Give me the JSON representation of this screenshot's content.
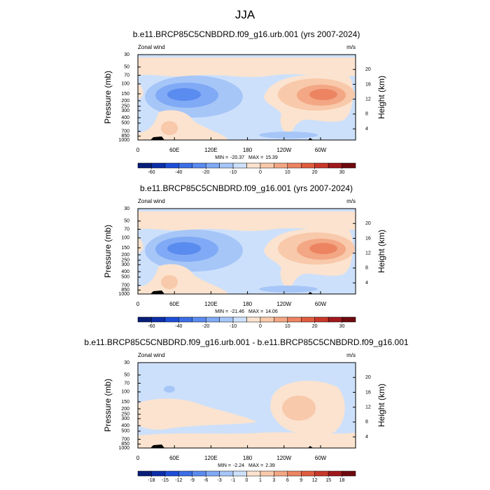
{
  "title": "JJA",
  "chart_data": [
    {
      "type": "contour",
      "title": "b.e11.BRCP85C5CNBDRD.f09_g16.urb.001 (yrs 2007-2024)",
      "left_label": "Zonal wind",
      "right_label": "m/s",
      "ylabel": "Pressure (mb)",
      "y2label": "Height (km)",
      "xlim": [
        0,
        357.5
      ],
      "xticks": [
        0,
        {
          "value": 60,
          "label": "60E"
        },
        {
          "value": 120,
          "label": "120E"
        },
        180,
        {
          "value": 240,
          "label": "120W"
        },
        {
          "value": 300,
          "label": "60W"
        }
      ],
      "ylim": [
        1000,
        30
      ],
      "ylog": true,
      "yticks": [
        1000,
        850,
        700,
        500,
        400,
        300,
        250,
        200,
        150,
        100,
        70,
        50,
        30
      ],
      "y2lim": [
        1,
        24
      ],
      "y2ticks": [
        4,
        8,
        12,
        16,
        20
      ],
      "min_label": "MIN =",
      "min": -20.37,
      "max_label": "MAX =",
      "max": 15.39,
      "colorbar": {
        "colors": [
          "#071e78",
          "#0c2ea8",
          "#1d4ed8",
          "#3b6ee6",
          "#5a8bef",
          "#80aaf5",
          "#a6c6f8",
          "#cde0fb",
          "#fbe3cf",
          "#f8c9aa",
          "#f3a784",
          "#ec8462",
          "#e05c3f",
          "#c8382a",
          "#a0191c",
          "#6e0a0f"
        ],
        "ticks": [
          -60,
          -40,
          -20,
          -10,
          0,
          10,
          20,
          30
        ]
      }
    },
    {
      "type": "contour",
      "title": "b.e11.BRCP85C5CNBDRD.f09_g16.001 (yrs 2007-2024)",
      "left_label": "Zonal wind",
      "right_label": "m/s",
      "ylabel": "Pressure (mb)",
      "y2label": "Height (km)",
      "xlim": [
        0,
        357.5
      ],
      "xticks": [
        0,
        {
          "value": 60,
          "label": "60E"
        },
        {
          "value": 120,
          "label": "120E"
        },
        180,
        {
          "value": 240,
          "label": "120W"
        },
        {
          "value": 300,
          "label": "60W"
        }
      ],
      "ylim": [
        1000,
        30
      ],
      "ylog": true,
      "yticks": [
        1000,
        850,
        700,
        500,
        400,
        300,
        250,
        200,
        150,
        100,
        70,
        50,
        30
      ],
      "y2lim": [
        1,
        24
      ],
      "y2ticks": [
        4,
        8,
        12,
        16,
        20
      ],
      "min_label": "MIN =",
      "min": -21.46,
      "max_label": "MAX =",
      "max": 14.06,
      "colorbar": {
        "colors": [
          "#071e78",
          "#0c2ea8",
          "#1d4ed8",
          "#3b6ee6",
          "#5a8bef",
          "#80aaf5",
          "#a6c6f8",
          "#cde0fb",
          "#fbe3cf",
          "#f8c9aa",
          "#f3a784",
          "#ec8462",
          "#e05c3f",
          "#c8382a",
          "#a0191c",
          "#6e0a0f"
        ],
        "ticks": [
          -60,
          -40,
          -20,
          -10,
          0,
          10,
          20,
          30
        ]
      }
    },
    {
      "type": "contour",
      "title": "b.e11.BRCP85C5CNBDRD.f09_g16.urb.001 - b.e11.BRCP85C5CNBDRD.f09_g16.001",
      "left_label": "Zonal wind",
      "right_label": "m/s",
      "ylabel": "Pressure (mb)",
      "y2label": "Height (km)",
      "xlim": [
        0,
        357.5
      ],
      "xticks": [
        0,
        {
          "value": 60,
          "label": "60E"
        },
        {
          "value": 120,
          "label": "120E"
        },
        180,
        {
          "value": 240,
          "label": "120W"
        },
        {
          "value": 300,
          "label": "60W"
        }
      ],
      "ylim": [
        1000,
        30
      ],
      "ylog": true,
      "yticks": [
        1000,
        850,
        700,
        500,
        400,
        300,
        250,
        200,
        150,
        100,
        70,
        50,
        30
      ],
      "y2lim": [
        1,
        24
      ],
      "y2ticks": [
        4,
        8,
        12,
        16,
        20
      ],
      "min_label": "MIN =",
      "min": -2.24,
      "max_label": "MAX =",
      "max": 2.39,
      "colorbar": {
        "colors": [
          "#071e78",
          "#0c2ea8",
          "#1d4ed8",
          "#3b6ee6",
          "#5a8bef",
          "#80aaf5",
          "#a6c6f8",
          "#cde0fb",
          "#fbe3cf",
          "#f8c9aa",
          "#f3a784",
          "#ec8462",
          "#e05c3f",
          "#c8382a",
          "#a0191c",
          "#6e0a0f"
        ],
        "ticks": [
          -18,
          -15,
          -12,
          -9,
          -6,
          -3,
          -1,
          0,
          1,
          3,
          6,
          9,
          12,
          15,
          18
        ]
      }
    }
  ]
}
